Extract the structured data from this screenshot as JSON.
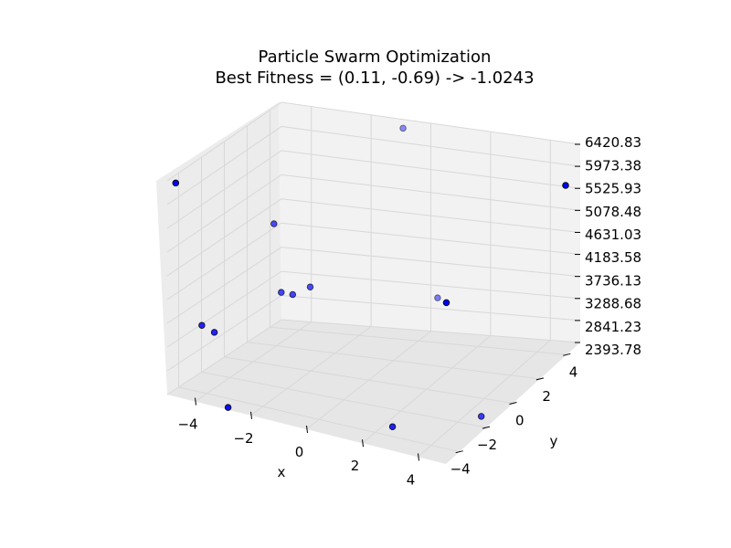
{
  "chart_data": {
    "type": "scatter",
    "title": "Particle Swarm Optimization",
    "subtitle": "Best Fitness = (0.11, -0.69) -> -1.0243",
    "xlabel": "x",
    "ylabel": "y",
    "zlabel": "",
    "xticks": [
      "−4",
      "−2",
      "0",
      "2",
      "4"
    ],
    "yticks": [
      "−4",
      "−2",
      "0",
      "2",
      "4"
    ],
    "zticks": [
      "2393.78",
      "2841.23",
      "3288.68",
      "3736.13",
      "4183.58",
      "4631.03",
      "5078.48",
      "5525.93",
      "5973.38",
      "6420.83"
    ],
    "grid": true,
    "colors": {
      "pane_back": "#f2f2f2",
      "pane_left": "#ececec",
      "pane_floor": "#e6e6e6",
      "point": "#0000ff"
    },
    "points_note": "particle positions (x, y, fitness) estimated from the 3D view",
    "points": [
      {
        "x": -4.9,
        "y": -4.5,
        "z": 6320
      },
      {
        "x": 4.6,
        "y": 4.8,
        "z": 5600
      },
      {
        "x": 2.6,
        "y": 0.2,
        "z": 4100
      },
      {
        "x": -3.2,
        "y": -0.2,
        "z": 5100
      },
      {
        "x": -4.5,
        "y": -3.2,
        "z": 3500
      },
      {
        "x": -4.1,
        "y": -3.1,
        "z": 3400
      },
      {
        "x": -2.7,
        "y": -0.8,
        "z": 3950
      },
      {
        "x": -2.3,
        "y": -0.8,
        "z": 3950
      },
      {
        "x": -1.9,
        "y": -0.3,
        "z": 4050
      },
      {
        "x": 0.9,
        "y": 3.4,
        "z": 3400
      },
      {
        "x": -2.9,
        "y": -4.8,
        "z": 2393.78
      },
      {
        "x": 2.3,
        "y": -3.3,
        "z": 2393.78
      },
      {
        "x": 4.5,
        "y": -1.3,
        "z": 2393.78
      },
      {
        "x": -0.6,
        "y": 4.2,
        "z": 6420.83
      }
    ]
  }
}
